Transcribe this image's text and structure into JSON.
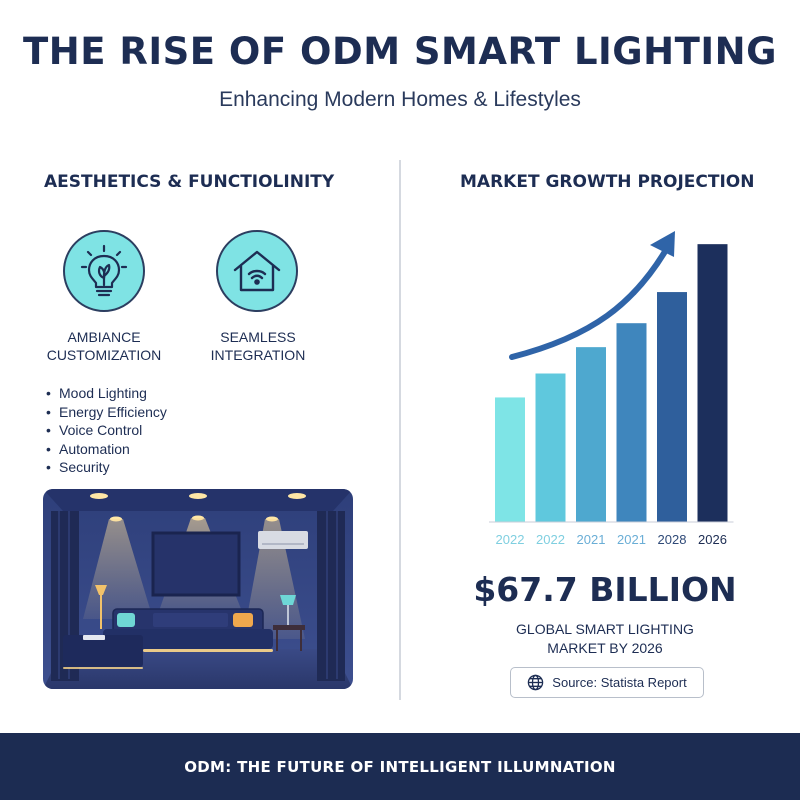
{
  "header": {
    "title": "THE RISE OF ODM SMART LIGHTING",
    "subtitle": "Enhancing Modern Homes & Lifestyles"
  },
  "left_section": {
    "title": "AESTHETICS & FUNCTIOLINITY",
    "features": [
      {
        "icon": "lightbulb-icon",
        "label_line1": "AMBIANCE",
        "label_line2": "CUSTOMIZATION"
      },
      {
        "icon": "smart-home-icon",
        "label_line1": "SEAMLESS",
        "label_line2": "INTEGRATION"
      }
    ],
    "bullets": [
      "Mood Lighting",
      "Energy Efficiency",
      "Voice Control",
      "Automation",
      "Security"
    ],
    "illustration": "living-room-illustration"
  },
  "right_section": {
    "title": "MARKET GROWTH PROJECTION",
    "big_number": "$67.7 BILLION",
    "caption_line1": "GLOBAL SMART LIGHTING",
    "caption_line2": "MARKET BY 2026",
    "source": "Source: Statista Report"
  },
  "chart_data": {
    "type": "bar",
    "categories": [
      "2022",
      "2022",
      "2021",
      "2021",
      "2028",
      "2026"
    ],
    "values": [
      2.6,
      3.1,
      3.65,
      4.15,
      4.8,
      5.8
    ],
    "ylim": [
      0,
      6.2
    ],
    "grid": false,
    "trend_arrow": true,
    "colors": [
      "#7ee4e6",
      "#5fc8dd",
      "#4ea8cf",
      "#3f86bd",
      "#2f5f9c",
      "#1c2f5c"
    ],
    "tick_colors": [
      "#7fcfe0",
      "#7fcfe0",
      "#6aaed6",
      "#6aaed6",
      "#2f4a78",
      "#1d2d53"
    ]
  },
  "footer": {
    "text": "ODM: THE FUTURE OF INTELLIGENT ILLUMNATION"
  },
  "colors": {
    "navy": "#1c2c52",
    "teal": "#7fe3e4"
  }
}
